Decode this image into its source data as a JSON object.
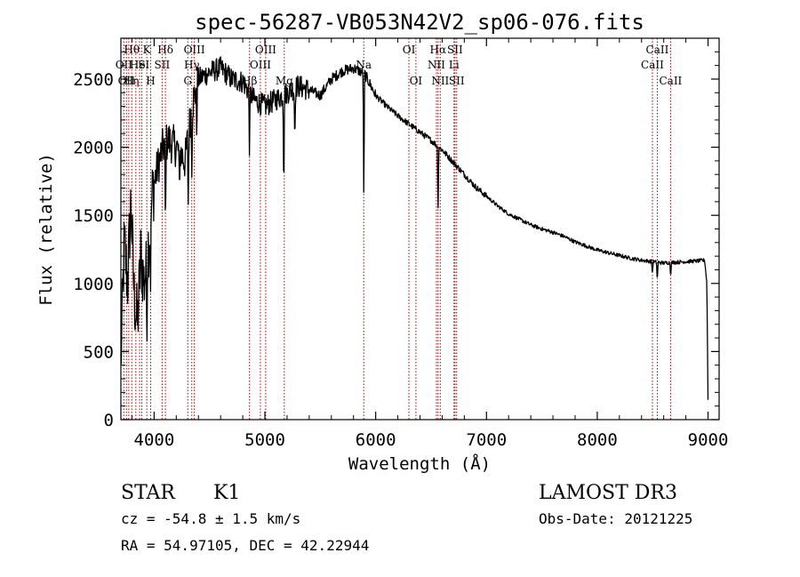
{
  "chart_data": {
    "type": "line",
    "title": "spec-56287-VB053N42V2_sp06-076.fits",
    "xlabel": "Wavelength (Å)",
    "ylabel": "Flux (relative)",
    "xlim": [
      3700,
      9100
    ],
    "ylim": [
      0,
      2800
    ],
    "x_ticks": [
      4000,
      5000,
      6000,
      7000,
      8000,
      9000
    ],
    "y_ticks": [
      0,
      500,
      1000,
      1500,
      2000,
      2500
    ],
    "grid": false,
    "spectrum_knots": [
      [
        3700,
        400
      ],
      [
        3730,
        1300
      ],
      [
        3760,
        1000
      ],
      [
        3790,
        1600
      ],
      [
        3820,
        900
      ],
      [
        3850,
        700
      ],
      [
        3880,
        1200
      ],
      [
        3910,
        1000
      ],
      [
        3950,
        1300
      ],
      [
        3990,
        1700
      ],
      [
        4030,
        1850
      ],
      [
        4080,
        2000
      ],
      [
        4130,
        2050
      ],
      [
        4200,
        2000
      ],
      [
        4280,
        1900
      ],
      [
        4340,
        2300
      ],
      [
        4400,
        2500
      ],
      [
        4500,
        2550
      ],
      [
        4600,
        2580
      ],
      [
        4700,
        2500
      ],
      [
        4800,
        2480
      ],
      [
        4900,
        2350
      ],
      [
        5000,
        2300
      ],
      [
        5100,
        2350
      ],
      [
        5200,
        2400
      ],
      [
        5300,
        2450
      ],
      [
        5400,
        2420
      ],
      [
        5500,
        2380
      ],
      [
        5600,
        2500
      ],
      [
        5700,
        2560
      ],
      [
        5800,
        2580
      ],
      [
        5900,
        2540
      ],
      [
        6000,
        2380
      ],
      [
        6100,
        2300
      ],
      [
        6200,
        2230
      ],
      [
        6300,
        2170
      ],
      [
        6400,
        2110
      ],
      [
        6500,
        2050
      ],
      [
        6600,
        1980
      ],
      [
        6700,
        1890
      ],
      [
        6800,
        1800
      ],
      [
        6900,
        1710
      ],
      [
        7000,
        1640
      ],
      [
        7100,
        1570
      ],
      [
        7200,
        1510
      ],
      [
        7300,
        1470
      ],
      [
        7400,
        1430
      ],
      [
        7500,
        1400
      ],
      [
        7600,
        1375
      ],
      [
        7700,
        1345
      ],
      [
        7800,
        1305
      ],
      [
        7900,
        1275
      ],
      [
        8000,
        1245
      ],
      [
        8100,
        1225
      ],
      [
        8200,
        1205
      ],
      [
        8300,
        1185
      ],
      [
        8400,
        1170
      ],
      [
        8500,
        1160
      ],
      [
        8600,
        1150
      ],
      [
        8700,
        1155
      ],
      [
        8800,
        1160
      ],
      [
        8900,
        1165
      ],
      [
        8970,
        1170
      ],
      [
        8990,
        1000
      ],
      [
        9000,
        150
      ]
    ],
    "absorption_dips": [
      [
        3934,
        500
      ],
      [
        3969,
        450
      ],
      [
        4102,
        700
      ],
      [
        4227,
        300
      ],
      [
        4308,
        500
      ],
      [
        4340,
        400
      ],
      [
        4384,
        300
      ],
      [
        4861,
        450
      ],
      [
        5170,
        700
      ],
      [
        5270,
        400
      ],
      [
        5893,
        1000
      ],
      [
        6563,
        500
      ],
      [
        8498,
        100
      ],
      [
        8542,
        150
      ],
      [
        8662,
        100
      ]
    ],
    "emission_lines": [
      {
        "wave": 3727,
        "tier": 1,
        "label": "OII"
      },
      {
        "wave": 3750,
        "tier": 2,
        "label": "OII"
      },
      {
        "wave": 3771,
        "tier": 2,
        "label": "H"
      },
      {
        "wave": 3798,
        "tier": 0,
        "label": "Hθ"
      },
      {
        "wave": 3835,
        "tier": 2,
        "label": "η"
      },
      {
        "wave": 3869,
        "tier": 1,
        "label": "HeI"
      },
      {
        "wave": 3889,
        "tier": 1,
        "label": "S"
      },
      {
        "wave": 3934,
        "tier": 0,
        "label": "K"
      },
      {
        "wave": 3969,
        "tier": 2,
        "label": "H"
      },
      {
        "wave": 4072,
        "tier": 1,
        "label": "SII"
      },
      {
        "wave": 4102,
        "tier": 0,
        "label": "Hδ"
      },
      {
        "wave": 4304,
        "tier": 2,
        "label": "G"
      },
      {
        "wave": 4340,
        "tier": 1,
        "label": "Hγ"
      },
      {
        "wave": 4363,
        "tier": 0,
        "label": "OIII"
      },
      {
        "wave": 4861,
        "tier": 2,
        "label": "Hβ"
      },
      {
        "wave": 4959,
        "tier": 1,
        "label": "OIII"
      },
      {
        "wave": 5007,
        "tier": 0,
        "label": "OIII"
      },
      {
        "wave": 5175,
        "tier": 2,
        "label": "Mg"
      },
      {
        "wave": 5892,
        "tier": 1,
        "label": "Na"
      },
      {
        "wave": 6300,
        "tier": 0,
        "label": "OI"
      },
      {
        "wave": 6363,
        "tier": 2,
        "label": "OI"
      },
      {
        "wave": 6548,
        "tier": 1,
        "label": "NII"
      },
      {
        "wave": 6563,
        "tier": 0,
        "label": "Hα"
      },
      {
        "wave": 6583,
        "tier": 2,
        "label": "NII"
      },
      {
        "wave": 6707,
        "tier": 1,
        "label": "Li"
      },
      {
        "wave": 6716,
        "tier": 0,
        "label": "SII"
      },
      {
        "wave": 6731,
        "tier": 2,
        "label": "SII"
      },
      {
        "wave": 8498,
        "tier": 1,
        "label": "CaII"
      },
      {
        "wave": 8542,
        "tier": 0,
        "label": "CaII"
      },
      {
        "wave": 8662,
        "tier": 2,
        "label": "CaII"
      }
    ]
  },
  "info": {
    "class": "STAR",
    "subclass": "K1",
    "survey": "LAMOST DR3",
    "cz": "cz = -54.8 ± 1.5 km/s",
    "obs_date": "Obs-Date: 20121225",
    "coords": "RA =  54.97105, DEC =  42.22944"
  },
  "colors": {
    "spectrum": "#000000",
    "line_marker": "#b00000",
    "axes": "#000000"
  }
}
